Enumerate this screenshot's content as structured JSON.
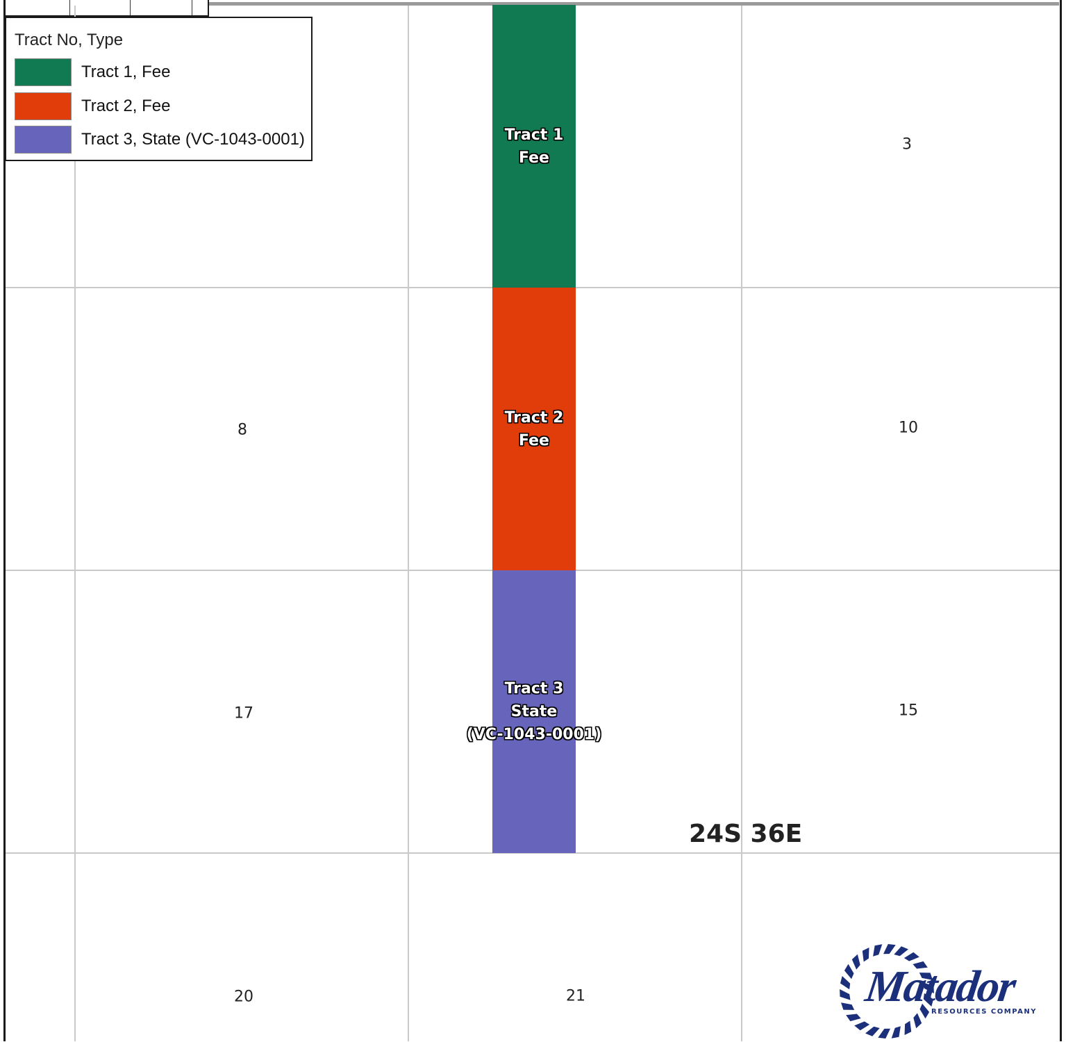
{
  "legend": {
    "title": "Tract No, Type",
    "items": [
      {
        "label": "Tract 1, Fee",
        "color": "#127a52"
      },
      {
        "label": "Tract 2, Fee",
        "color": "#e03d0a"
      },
      {
        "label": "Tract 3, State (VC-1043-0001)",
        "color": "#6664bb"
      }
    ]
  },
  "tracts": [
    {
      "lines": [
        "Tract 1",
        "Fee"
      ],
      "color": "#127a52"
    },
    {
      "lines": [
        "Tract 2",
        "Fee"
      ],
      "color": "#e03d0a"
    },
    {
      "lines": [
        "Tract 3",
        "State",
        "(VC-1043-0001)"
      ],
      "color": "#6664bb"
    }
  ],
  "sections": [
    "3",
    "8",
    "10",
    "17",
    "15",
    "20",
    "21"
  ],
  "township": "24S 36E",
  "logo": {
    "word": "Matador",
    "subtitle": "RESOURCES COMPANY",
    "color": "#1b2f7a"
  }
}
